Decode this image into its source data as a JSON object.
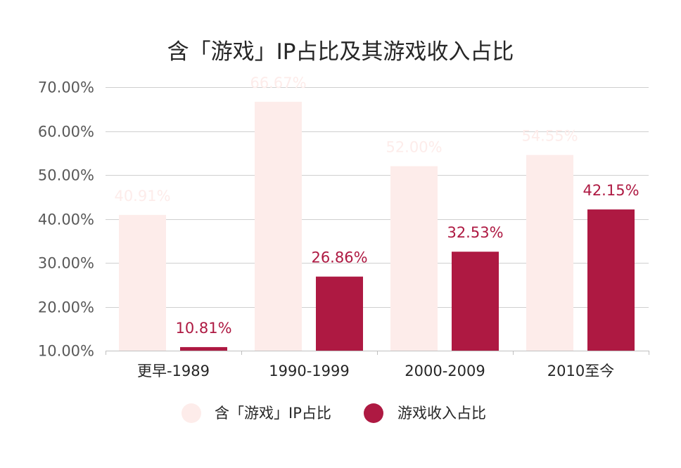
{
  "chart_data": {
    "type": "bar",
    "title": "含「游戏」IP占比及其游戏收入占比",
    "categories": [
      "更早-1989",
      "1990-1999",
      "2000-2009",
      "2010至今"
    ],
    "series": [
      {
        "name": "含「游戏」IP占比",
        "values": [
          40.91,
          66.67,
          52.0,
          54.55
        ],
        "labels": [
          "40.91%",
          "66.67%",
          "52.00%",
          "54.55%"
        ],
        "color": "#fdecea"
      },
      {
        "name": "游戏收入占比",
        "values": [
          10.81,
          26.86,
          32.53,
          42.15
        ],
        "labels": [
          "10.81%",
          "26.86%",
          "32.53%",
          "42.15%"
        ],
        "color": "#ae1942"
      }
    ],
    "ylim": [
      10,
      70
    ],
    "yticks": [
      10,
      20,
      30,
      40,
      50,
      60,
      70
    ],
    "ytick_labels": [
      "10.00%",
      "20.00%",
      "30.00%",
      "40.00%",
      "50.00%",
      "60.00%",
      "70.00%"
    ],
    "xlabel": "",
    "ylabel": "",
    "grid": true,
    "legend_position": "bottom"
  }
}
